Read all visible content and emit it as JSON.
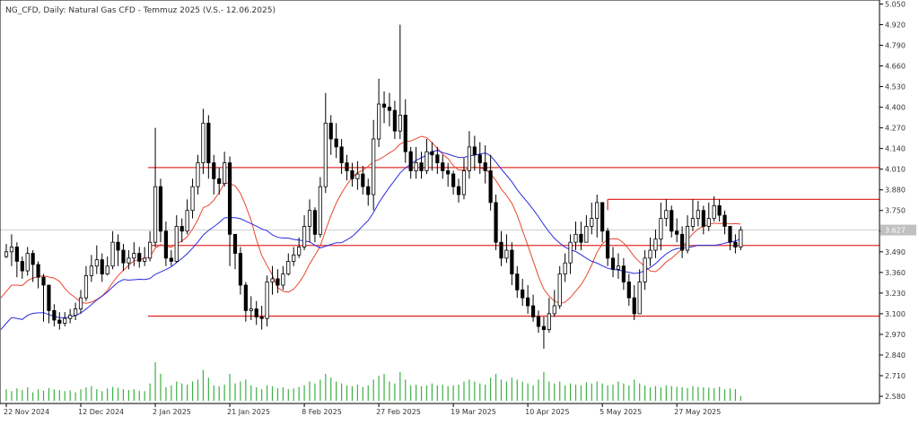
{
  "chart_data": {
    "type": "candlestick",
    "title": "NG_CFD, Daily:  Natural Gas CFD - Temmuz 2025 (V.S.- 12.06.2025)",
    "current_price_label": "3.627",
    "current_price": 3.627,
    "y_ticks": [
      "5.050",
      "4.920",
      "4.790",
      "4.660",
      "4.530",
      "4.400",
      "4.270",
      "4.140",
      "4.010",
      "3.880",
      "3.750",
      "3.620",
      "3.490",
      "3.360",
      "3.230",
      "3.100",
      "2.970",
      "2.840",
      "2.710",
      "2.580"
    ],
    "ylim": [
      2.535,
      5.075
    ],
    "x_ticks": [
      "22 Nov 2024",
      "12 Dec 2024",
      "2 Jan 2025",
      "21 Jan 2025",
      "8 Feb 2025",
      "27 Feb 2025",
      "19 Mar 2025",
      "10 Apr 2025",
      "5 May 2025",
      "27 May 2025"
    ],
    "x_tick_bar_index": [
      0,
      14,
      28,
      42,
      56,
      70,
      84,
      98,
      112,
      126
    ],
    "horizontal_levels": [
      {
        "value": 4.02,
        "color": "#e0302e"
      },
      {
        "value": 3.53,
        "color": "#e0302e"
      },
      {
        "value": 3.085,
        "color": "#e0302e"
      }
    ],
    "segment_levels": [
      {
        "value": 3.82,
        "from_bar": 113,
        "color": "#e0302e"
      }
    ],
    "close": [
      3.49,
      3.52,
      3.43,
      3.37,
      3.48,
      3.41,
      3.33,
      3.28,
      3.12,
      3.06,
      3.04,
      3.07,
      3.09,
      3.13,
      3.2,
      3.34,
      3.4,
      3.44,
      3.35,
      3.4,
      3.55,
      3.5,
      3.42,
      3.45,
      3.48,
      3.43,
      3.45,
      3.55,
      3.9,
      3.62,
      3.45,
      3.43,
      3.65,
      3.62,
      3.75,
      3.9,
      4.05,
      4.3,
      4.05,
      3.95,
      3.92,
      4.05,
      3.6,
      3.48,
      3.28,
      3.12,
      3.13,
      3.08,
      3.07,
      3.3,
      3.32,
      3.28,
      3.35,
      3.43,
      3.47,
      3.52,
      3.65,
      3.75,
      3.6,
      3.9,
      4.3,
      4.2,
      4.15,
      4.05,
      4.0,
      3.95,
      3.98,
      3.9,
      3.85,
      4.2,
      4.42,
      4.4,
      4.38,
      4.25,
      4.35,
      4.12,
      4.0,
      4.05,
      4.0,
      4.12,
      4.1,
      4.05,
      4.0,
      3.98,
      3.9,
      3.85,
      4.0,
      4.15,
      4.1,
      4.05,
      4.0,
      3.8,
      3.55,
      3.45,
      3.5,
      3.35,
      3.25,
      3.2,
      3.15,
      3.08,
      3.02,
      3.0,
      3.1,
      3.15,
      3.35,
      3.42,
      3.55,
      3.6,
      3.55,
      3.65,
      3.7,
      3.8,
      3.62,
      3.45,
      3.38,
      3.4,
      3.3,
      3.2,
      3.1,
      3.3,
      3.45,
      3.5,
      3.57,
      3.7,
      3.75,
      3.62,
      3.6,
      3.5,
      3.65,
      3.7,
      3.75,
      3.65,
      3.7,
      3.78,
      3.72,
      3.65,
      3.55,
      3.52,
      3.627
    ],
    "high": [
      3.54,
      3.6,
      3.55,
      3.46,
      3.52,
      3.5,
      3.43,
      3.35,
      3.23,
      3.16,
      3.11,
      3.11,
      3.13,
      3.17,
      3.25,
      3.4,
      3.47,
      3.53,
      3.48,
      3.46,
      3.62,
      3.6,
      3.54,
      3.5,
      3.55,
      3.52,
      3.52,
      3.62,
      4.27,
      3.95,
      3.68,
      3.5,
      3.72,
      3.7,
      3.82,
      3.95,
      4.1,
      4.39,
      4.35,
      4.1,
      4.02,
      4.12,
      4.09,
      3.59,
      3.52,
      3.3,
      3.21,
      3.18,
      3.15,
      3.34,
      3.4,
      3.38,
      3.4,
      3.48,
      3.52,
      3.58,
      3.72,
      3.82,
      3.77,
      3.96,
      4.49,
      4.35,
      4.3,
      4.2,
      4.1,
      4.05,
      4.06,
      4.03,
      3.95,
      4.32,
      4.58,
      4.5,
      4.49,
      4.44,
      4.92,
      4.45,
      4.15,
      4.15,
      4.12,
      4.2,
      4.18,
      4.15,
      4.1,
      4.05,
      4.0,
      3.95,
      4.08,
      4.25,
      4.22,
      4.18,
      4.16,
      4.1,
      3.85,
      3.62,
      3.6,
      3.55,
      3.4,
      3.32,
      3.28,
      3.22,
      3.12,
      3.08,
      3.2,
      3.25,
      3.4,
      3.48,
      3.6,
      3.68,
      3.68,
      3.72,
      3.8,
      3.85,
      3.8,
      3.64,
      3.52,
      3.48,
      3.45,
      3.35,
      3.28,
      3.38,
      3.5,
      3.58,
      3.63,
      3.8,
      3.82,
      3.78,
      3.7,
      3.65,
      3.72,
      3.82,
      3.81,
      3.78,
      3.8,
      3.84,
      3.82,
      3.75,
      3.65,
      3.6,
      3.65
    ],
    "low": [
      3.45,
      3.4,
      3.33,
      3.32,
      3.34,
      3.3,
      3.26,
      3.05,
      3.04,
      3.02,
      3.0,
      3.02,
      3.04,
      3.06,
      3.1,
      3.18,
      3.3,
      3.35,
      3.3,
      3.34,
      3.38,
      3.4,
      3.37,
      3.38,
      3.4,
      3.39,
      3.4,
      3.43,
      3.52,
      3.55,
      3.4,
      3.4,
      3.42,
      3.55,
      3.6,
      3.7,
      3.85,
      3.98,
      3.95,
      3.85,
      3.85,
      3.9,
      3.4,
      3.38,
      3.22,
      3.05,
      3.06,
      3.03,
      3.0,
      3.02,
      3.22,
      3.23,
      3.25,
      3.34,
      3.4,
      3.45,
      3.5,
      3.55,
      3.55,
      3.58,
      3.86,
      4.1,
      4.08,
      3.98,
      3.94,
      3.9,
      3.88,
      3.85,
      3.78,
      3.75,
      4.15,
      4.3,
      4.28,
      4.2,
      4.2,
      4.05,
      3.95,
      3.95,
      3.95,
      3.98,
      4.0,
      3.98,
      3.95,
      3.9,
      3.85,
      3.8,
      3.82,
      3.95,
      4.0,
      3.98,
      3.92,
      3.75,
      3.5,
      3.4,
      3.42,
      3.28,
      3.2,
      3.15,
      3.1,
      3.05,
      2.98,
      2.88,
      2.98,
      3.08,
      3.13,
      3.3,
      3.35,
      3.5,
      3.5,
      3.55,
      3.6,
      3.58,
      3.55,
      3.4,
      3.33,
      3.32,
      3.25,
      3.15,
      3.06,
      3.1,
      3.25,
      3.4,
      3.45,
      3.5,
      3.65,
      3.58,
      3.55,
      3.45,
      3.48,
      3.62,
      3.65,
      3.6,
      3.62,
      3.68,
      3.68,
      3.6,
      3.5,
      3.48,
      3.5
    ],
    "volume": [
      0.3,
      0.25,
      0.32,
      0.28,
      0.35,
      0.22,
      0.3,
      0.26,
      0.33,
      0.3,
      0.28,
      0.25,
      0.27,
      0.22,
      0.3,
      0.35,
      0.38,
      0.3,
      0.25,
      0.32,
      0.36,
      0.34,
      0.3,
      0.28,
      0.3,
      0.26,
      0.25,
      0.45,
      1.0,
      0.7,
      0.35,
      0.4,
      0.5,
      0.45,
      0.42,
      0.5,
      0.55,
      0.8,
      0.6,
      0.4,
      0.38,
      0.42,
      0.7,
      0.45,
      0.5,
      0.55,
      0.4,
      0.35,
      0.3,
      0.4,
      0.38,
      0.33,
      0.35,
      0.3,
      0.32,
      0.36,
      0.4,
      0.5,
      0.45,
      0.55,
      0.7,
      0.6,
      0.5,
      0.45,
      0.4,
      0.38,
      0.42,
      0.36,
      0.4,
      0.55,
      0.65,
      0.7,
      0.5,
      0.45,
      0.75,
      0.55,
      0.4,
      0.42,
      0.38,
      0.4,
      0.45,
      0.4,
      0.42,
      0.38,
      0.4,
      0.42,
      0.5,
      0.55,
      0.5,
      0.45,
      0.42,
      0.6,
      0.7,
      0.55,
      0.5,
      0.6,
      0.55,
      0.5,
      0.45,
      0.4,
      0.55,
      0.75,
      0.5,
      0.45,
      0.5,
      0.4,
      0.45,
      0.42,
      0.4,
      0.48,
      0.45,
      0.5,
      0.45,
      0.4,
      0.42,
      0.5,
      0.45,
      0.4,
      0.55,
      0.45,
      0.4,
      0.35,
      0.38,
      0.35,
      0.4,
      0.38,
      0.36,
      0.35,
      0.33,
      0.38,
      0.36,
      0.35,
      0.34,
      0.33,
      0.36,
      0.3,
      0.32,
      0.3,
      0.12
    ],
    "ma_red_label": "red moving average",
    "ma_blue_label": "blue moving average",
    "colors": {
      "candle_up_fill": "#ffffff",
      "candle_down_fill": "#000000",
      "candle_outline": "#000000",
      "ma_red": "#e8472f",
      "ma_blue": "#2b2be0",
      "volume": "#3cb043",
      "level": "#e0302e",
      "axis_text": "#333333",
      "current_price_line": "#c0c0c0",
      "current_price_tag_bg": "#c0c0c0"
    }
  }
}
